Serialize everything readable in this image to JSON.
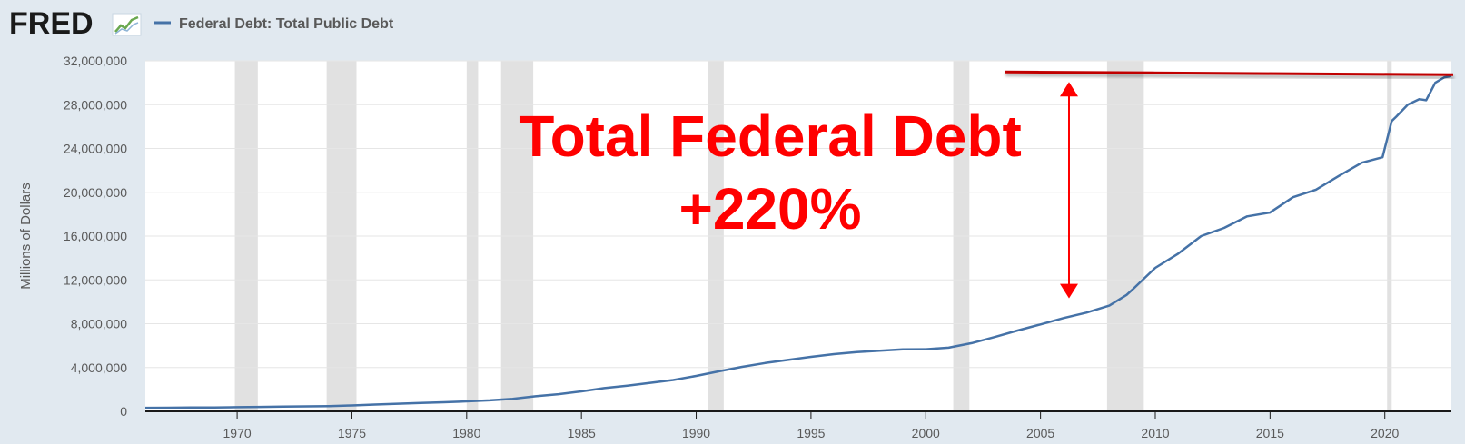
{
  "header": {
    "logo_text": "FRED",
    "legend_label": "Federal Debt: Total Public Debt"
  },
  "colors": {
    "background": "#e1e9f0",
    "plot_background": "#ffffff",
    "series_line": "#4572a7",
    "recession_shading": "#e1e1e1",
    "annotation": "#ff0000",
    "annotation_line": "#c00000"
  },
  "chart_data": {
    "type": "line",
    "title": "",
    "xlabel": "",
    "ylabel": "Millions of Dollars",
    "xlim": [
      1966.0,
      2022.9
    ],
    "ylim": [
      0,
      32000000
    ],
    "x_ticks": [
      1970,
      1975,
      1980,
      1985,
      1990,
      1995,
      2000,
      2005,
      2010,
      2015,
      2020
    ],
    "y_ticks": [
      0,
      4000000,
      8000000,
      12000000,
      16000000,
      20000000,
      24000000,
      28000000,
      32000000
    ],
    "y_tick_labels": [
      "0",
      "4,000,000",
      "8,000,000",
      "12,000,000",
      "16,000,000",
      "20,000,000",
      "24,000,000",
      "28,000,000",
      "32,000,000"
    ],
    "grid": true,
    "legend": "top-left",
    "recessions": [
      [
        1969.9,
        1970.9
      ],
      [
        1973.9,
        1975.2
      ],
      [
        1980.0,
        1980.5
      ],
      [
        1981.5,
        1982.9
      ],
      [
        1990.5,
        1991.2
      ],
      [
        2001.2,
        2001.9
      ],
      [
        2007.9,
        2009.5
      ],
      [
        2020.1,
        2020.3
      ]
    ],
    "series": [
      {
        "name": "Federal Debt: Total Public Debt",
        "x": [
          1966,
          1967,
          1968,
          1969,
          1970,
          1971,
          1972,
          1973,
          1974,
          1975,
          1976,
          1977,
          1978,
          1979,
          1980,
          1981,
          1982,
          1983,
          1984,
          1985,
          1986,
          1987,
          1988,
          1989,
          1990,
          1991,
          1992,
          1993,
          1994,
          1995,
          1996,
          1997,
          1998,
          1999,
          2000,
          2001,
          2002,
          2003,
          2004,
          2005,
          2006,
          2007,
          2008,
          2008.75,
          2009,
          2010,
          2011,
          2012,
          2013,
          2014,
          2015,
          2016,
          2017,
          2018,
          2019,
          2019.9,
          2020.3,
          2020.5,
          2021,
          2021.5,
          2021.8,
          2022.2,
          2022.6,
          2022.9
        ],
        "values": [
          320000,
          330000,
          350000,
          360000,
          380000,
          410000,
          430000,
          460000,
          480000,
          540000,
          620000,
          700000,
          770000,
          830000,
          910000,
          1000000,
          1140000,
          1380000,
          1570000,
          1820000,
          2120000,
          2350000,
          2600000,
          2860000,
          3230000,
          3660000,
          4060000,
          4410000,
          4690000,
          4970000,
          5220000,
          5410000,
          5530000,
          5660000,
          5670000,
          5810000,
          6230000,
          6780000,
          7380000,
          7930000,
          8510000,
          9010000,
          9650000,
          10630000,
          11100000,
          13100000,
          14400000,
          16000000,
          16750000,
          17800000,
          18150000,
          19550000,
          20240000,
          21500000,
          22700000,
          23200000,
          26500000,
          26900000,
          28000000,
          28500000,
          28400000,
          30000000,
          30500000,
          30600000
        ]
      }
    ],
    "annotations": [
      {
        "text": "Total Federal Debt",
        "kind": "headline"
      },
      {
        "text": "+220%",
        "kind": "percent"
      }
    ],
    "reference_levels": {
      "low": 9650000,
      "high": 30900000
    }
  }
}
